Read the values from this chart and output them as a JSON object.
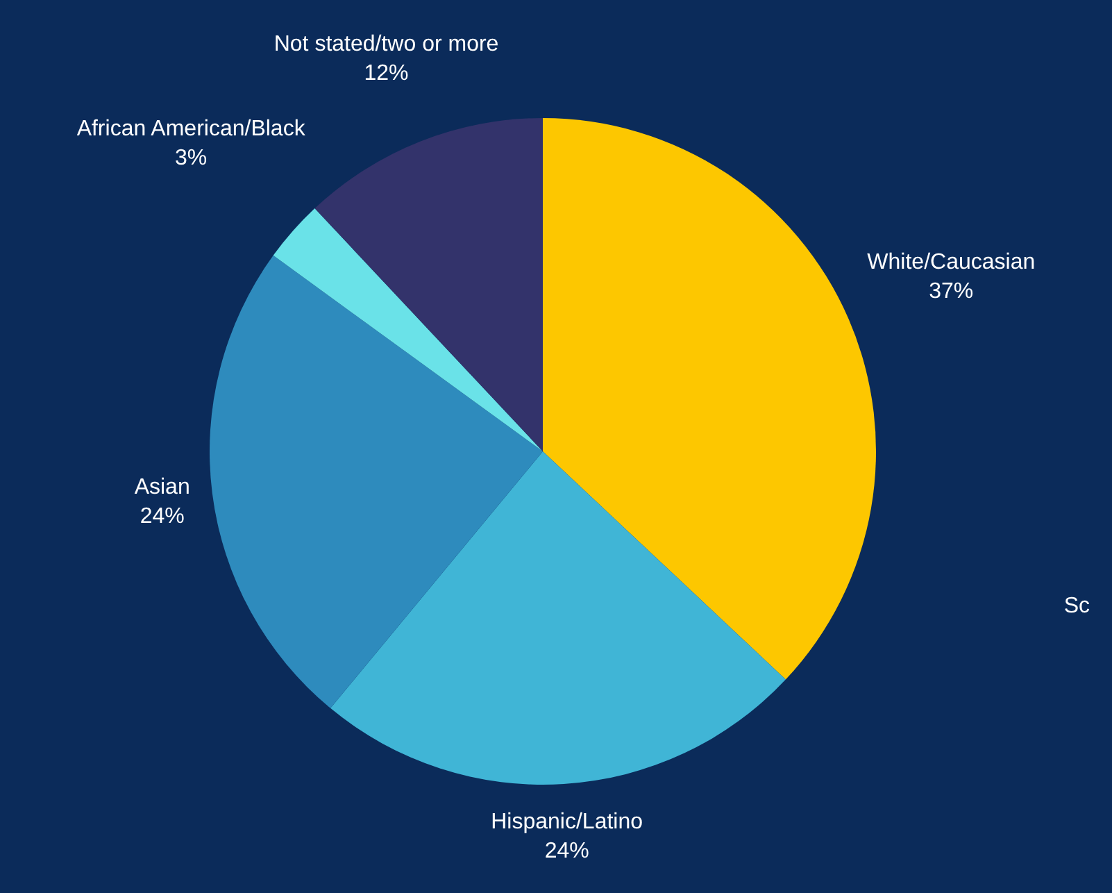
{
  "chart_data": {
    "type": "pie",
    "categories": [
      "White/Caucasian",
      "Hispanic/Latino",
      "Asian",
      "African American/Black",
      "Not stated/two or more"
    ],
    "values": [
      37,
      24,
      24,
      3,
      12
    ],
    "colors": [
      "#fdc700",
      "#40b5d6",
      "#2e8bbd",
      "#6ae2e8",
      "#33336b"
    ],
    "value_labels": [
      "37%",
      "24%",
      "24%",
      "3%",
      "12%"
    ],
    "annotations": [
      "Sc"
    ]
  }
}
